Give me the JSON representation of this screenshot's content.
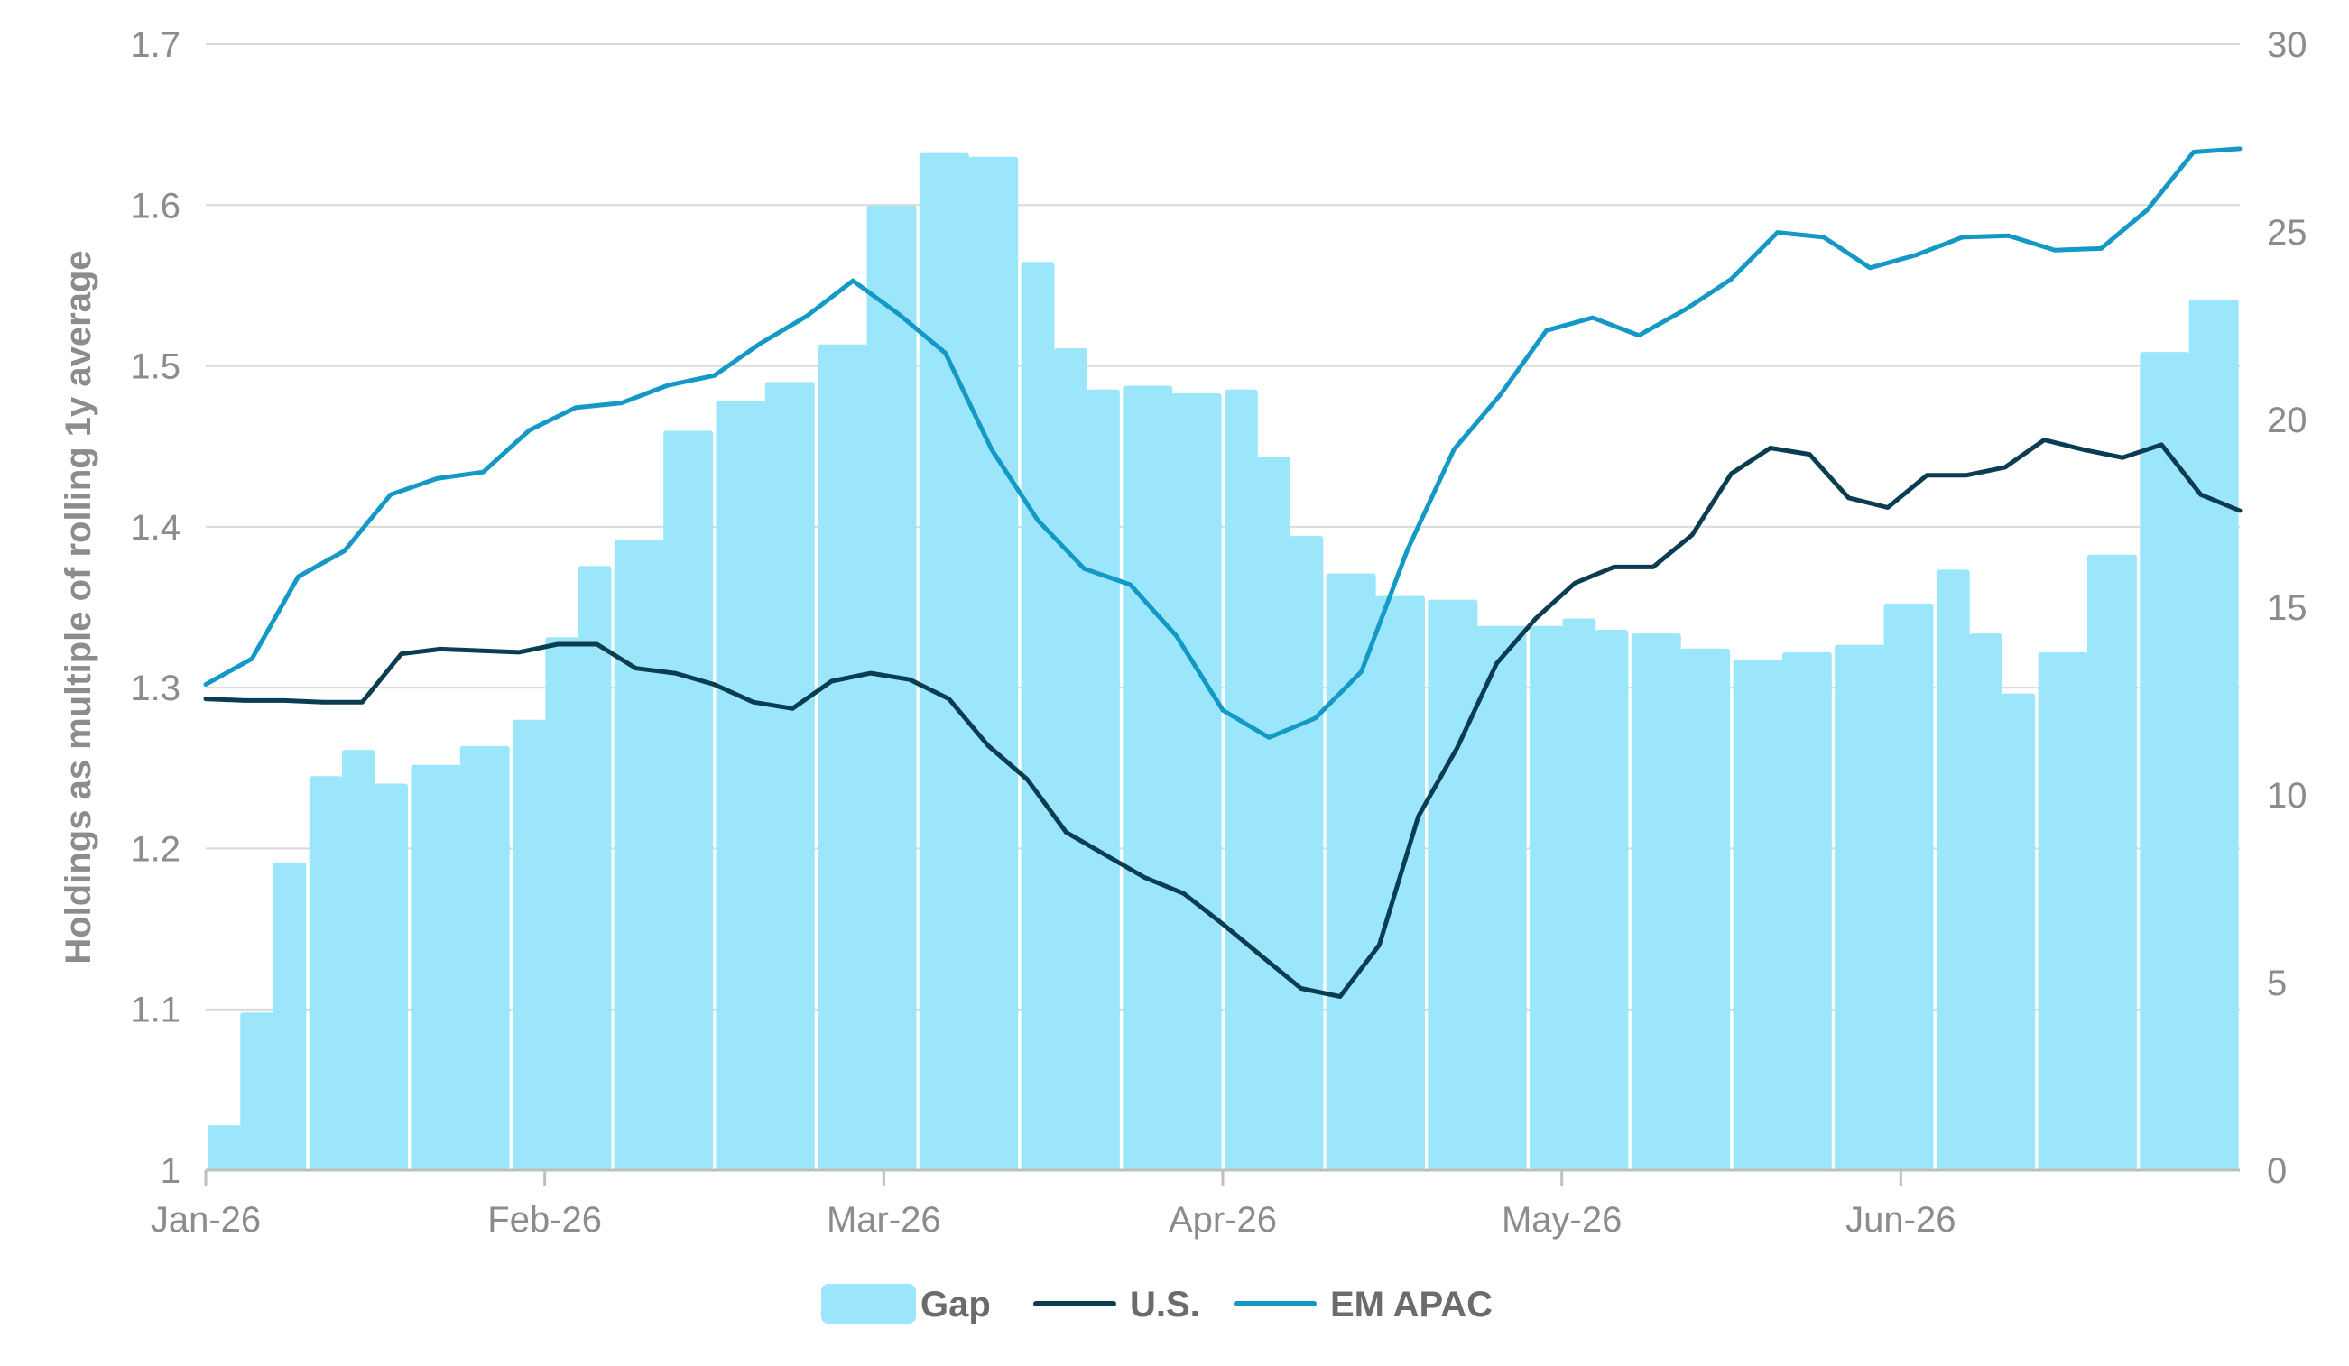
{
  "chart_data": {
    "type": "bar+line",
    "title": "",
    "ylabel": "Holdings as multiple of rolling 1y average",
    "ylim_left": [
      1.0,
      1.7
    ],
    "yticks_left": [
      "1.7",
      "1.6",
      "1.5",
      "1.4",
      "1.3",
      "1.2",
      "1.1",
      "1"
    ],
    "ylim_right": [
      0,
      30
    ],
    "yticks_right": [
      "30",
      "25",
      "20",
      "15",
      "10",
      "5",
      "0"
    ],
    "x_labels": [
      "Jan-26",
      "Feb-26",
      "Mar-26",
      "Apr-26",
      "May-26",
      "Jun-26"
    ],
    "grid": "horizontal",
    "legend_position": "bottom",
    "colors": {
      "gap": "#9ce6fc",
      "us": "#0b3d52",
      "em_apac": "#1499c7",
      "grid": "#d9d9d9",
      "text": "#8c8c8c"
    },
    "period_weeks": [
      [
        1.2,
        4.2,
        8.2
      ],
      [
        10.5,
        11.2,
        10.3
      ],
      [
        10.8,
        11.3
      ],
      [
        12.0,
        14.2,
        16.1
      ],
      [
        16.8,
        19.7
      ],
      [
        20.5,
        21.0
      ],
      [
        22.0,
        25.7
      ],
      [
        27.1,
        27.0
      ],
      [
        24.2,
        21.9,
        20.8
      ],
      [
        20.9,
        20.7
      ],
      [
        20.8,
        19.0,
        16.9
      ],
      [
        15.9,
        15.3
      ],
      [
        15.2,
        14.5
      ],
      [
        14.5,
        14.7,
        14.4
      ],
      [
        14.3,
        13.9
      ],
      [
        13.6,
        13.8
      ],
      [
        14.0,
        15.1
      ],
      [
        16.0,
        14.3,
        12.7
      ],
      [
        13.8,
        16.4
      ],
      [
        21.8,
        23.2
      ]
    ],
    "series": [
      {
        "name": "Gap",
        "axis": "right",
        "values": [
          1.2,
          4.0,
          6.9,
          8.2,
          10.1,
          11.0,
          10.5,
          10.2,
          10.8,
          11.3,
          11.9,
          12.8,
          14.4,
          16.1,
          16.8,
          18.0,
          19.6,
          20.5,
          20.9,
          21.2,
          22.1,
          23.9,
          25.2,
          26.4,
          27.1,
          26.4,
          24.0,
          22.0,
          21.0,
          20.8,
          20.7,
          20.3,
          18.7,
          17.3,
          16.4,
          15.6,
          15.3,
          15.0,
          14.7,
          14.5,
          14.6,
          14.7,
          14.4,
          14.3,
          14.0,
          13.7,
          13.8,
          14.0,
          14.4,
          15.1,
          16.3,
          15.4,
          13.2,
          12.9,
          13.5,
          14.3,
          15.9,
          18.2,
          21.9,
          23.1
        ]
      },
      {
        "name": "U.S.",
        "axis": "left",
        "values": [
          1.293,
          1.292,
          1.292,
          1.291,
          1.291,
          1.321,
          1.324,
          1.323,
          1.322,
          1.327,
          1.327,
          1.312,
          1.309,
          1.302,
          1.291,
          1.287,
          1.304,
          1.309,
          1.305,
          1.293,
          1.264,
          1.243,
          1.21,
          1.196,
          1.182,
          1.172,
          1.153,
          1.133,
          1.113,
          1.108,
          1.14,
          1.22,
          1.263,
          1.315,
          1.343,
          1.365,
          1.375,
          1.375,
          1.395,
          1.433,
          1.449,
          1.445,
          1.418,
          1.412,
          1.432,
          1.432,
          1.437,
          1.454,
          1.448,
          1.443,
          1.451,
          1.42,
          1.41
        ]
      },
      {
        "name": "EM APAC",
        "axis": "left",
        "values": [
          1.302,
          1.318,
          1.369,
          1.385,
          1.42,
          1.43,
          1.434,
          1.46,
          1.474,
          1.477,
          1.488,
          1.494,
          1.514,
          1.531,
          1.553,
          1.532,
          1.508,
          1.448,
          1.404,
          1.374,
          1.364,
          1.332,
          1.286,
          1.269,
          1.281,
          1.31,
          1.386,
          1.448,
          1.482,
          1.522,
          1.53,
          1.519,
          1.535,
          1.554,
          1.583,
          1.58,
          1.561,
          1.569,
          1.58,
          1.581,
          1.572,
          1.573,
          1.597,
          1.633,
          1.635
        ]
      }
    ]
  },
  "legend": {
    "items": [
      {
        "label": "Gap",
        "color": "#9ce6fc",
        "kind": "box"
      },
      {
        "label": "U.S.",
        "color": "#0b3d52",
        "kind": "line"
      },
      {
        "label": "EM APAC",
        "color": "#1499c7",
        "kind": "line"
      }
    ]
  }
}
